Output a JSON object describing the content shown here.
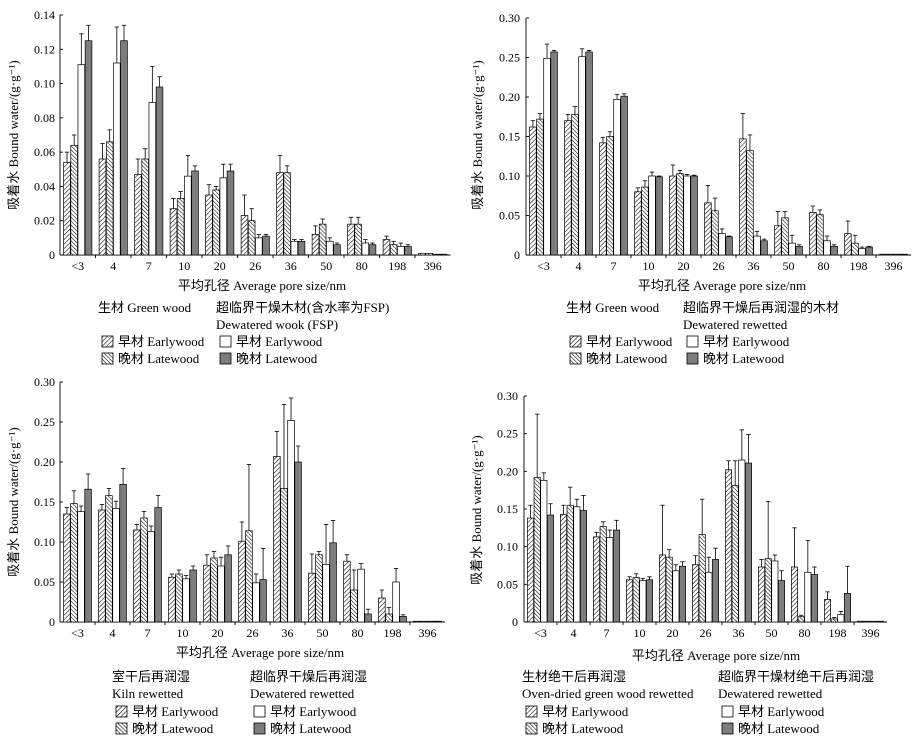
{
  "chart_data": [
    {
      "type": "bar",
      "categories": [
        "<3",
        "4",
        "7",
        "10",
        "20",
        "26",
        "36",
        "50",
        "80",
        "198",
        "396"
      ],
      "xlabel": "平均孔径 Average pore size/nm",
      "ylabel": "吸着水 Bound water/(g·g⁻¹)",
      "ylim": [
        0,
        0.14
      ],
      "ytick_labels": [
        "0",
        "0.02",
        "0.04",
        "0.06",
        "0.08",
        "0.10",
        "0.12",
        "0.14"
      ],
      "legend": {
        "groups": [
          {
            "lines": [
              "生材 Green wood"
            ]
          },
          {
            "lines": [
              "超临界干燥木材(含水率为FSP)",
              "Dewatered wook (FSP)"
            ]
          }
        ]
      },
      "series": [
        {
          "label": "早材 Earlywood",
          "group": 0,
          "fill": "hatch-forward",
          "values": [
            0.054,
            0.056,
            0.047,
            0.027,
            0.035,
            0.023,
            0.048,
            0.012,
            0.018,
            0.009,
            0.001
          ],
          "errors": [
            0.006,
            0.009,
            0.009,
            0.006,
            0.006,
            0.012,
            0.01,
            0.005,
            0.004,
            0.002,
            0
          ]
        },
        {
          "label": "晚材 Latewood",
          "group": 0,
          "fill": "hatch-back",
          "values": [
            0.064,
            0.066,
            0.056,
            0.033,
            0.038,
            0.02,
            0.048,
            0.018,
            0.018,
            0.006,
            0.001
          ],
          "errors": [
            0.006,
            0.007,
            0.006,
            0.004,
            0.002,
            0.007,
            0.004,
            0.003,
            0.004,
            0.002,
            0
          ]
        },
        {
          "label": "早材 Earlywood",
          "group": 1,
          "fill": "#ffffff",
          "values": [
            0.111,
            0.112,
            0.089,
            0.046,
            0.045,
            0.01,
            0.008,
            0.008,
            0.007,
            0.005,
            0.0
          ],
          "errors": [
            0.018,
            0.021,
            0.021,
            0.012,
            0.008,
            0.002,
            0.001,
            0.002,
            0.002,
            0.002,
            0
          ]
        },
        {
          "label": "晚材 Latewood",
          "group": 1,
          "fill": "#7d7d7d",
          "values": [
            0.125,
            0.125,
            0.098,
            0.049,
            0.049,
            0.011,
            0.008,
            0.006,
            0.006,
            0.005,
            0.0
          ],
          "errors": [
            0.009,
            0.009,
            0.006,
            0.003,
            0.004,
            0.001,
            0.001,
            0.001,
            0.001,
            0.001,
            0
          ]
        }
      ]
    },
    {
      "type": "bar",
      "categories": [
        "<3",
        "4",
        "7",
        "10",
        "20",
        "26",
        "36",
        "50",
        "80",
        "198",
        "396"
      ],
      "xlabel": "平均孔径 Average pore size/nm",
      "ylabel": "吸着水 Bound water/(g·g⁻¹)",
      "ylim": [
        0,
        0.3
      ],
      "ytick_labels": [
        "0",
        "0.05",
        "0.10",
        "0.15",
        "0.20",
        "0.25",
        "0.30"
      ],
      "legend": {
        "groups": [
          {
            "lines": [
              "生材 Green wood"
            ]
          },
          {
            "lines": [
              "超临界干燥后再润湿的木材",
              "Dewatered rewetted"
            ]
          }
        ]
      },
      "series": [
        {
          "label": "早材 Earlywood",
          "group": 0,
          "fill": "hatch-forward",
          "values": [
            0.162,
            0.17,
            0.142,
            0.08,
            0.1,
            0.066,
            0.147,
            0.037,
            0.054,
            0.027,
            0.001
          ],
          "errors": [
            0.008,
            0.008,
            0.007,
            0.005,
            0.014,
            0.022,
            0.032,
            0.018,
            0.008,
            0.016,
            0
          ]
        },
        {
          "label": "晚材 Latewood",
          "group": 0,
          "fill": "hatch-back",
          "values": [
            0.172,
            0.178,
            0.15,
            0.086,
            0.103,
            0.056,
            0.132,
            0.047,
            0.051,
            0.015,
            0.001
          ],
          "errors": [
            0.007,
            0.01,
            0.006,
            0.008,
            0.004,
            0.016,
            0.02,
            0.008,
            0.006,
            0.01,
            0
          ]
        },
        {
          "label": "早材 Earlywood",
          "group": 1,
          "fill": "#ffffff",
          "values": [
            0.249,
            0.251,
            0.197,
            0.1,
            0.1,
            0.027,
            0.024,
            0.015,
            0.018,
            0.008,
            0.001
          ],
          "errors": [
            0.018,
            0.01,
            0.006,
            0.005,
            0.002,
            0.006,
            0.006,
            0.01,
            0.006,
            0.002,
            0
          ]
        },
        {
          "label": "晚材 Latewood",
          "group": 1,
          "fill": "#7d7d7d",
          "values": [
            0.257,
            0.257,
            0.201,
            0.099,
            0.1,
            0.023,
            0.018,
            0.011,
            0.011,
            0.01,
            0.001
          ],
          "errors": [
            0.002,
            0.002,
            0.003,
            0.001,
            0.001,
            0.001,
            0.002,
            0.002,
            0.002,
            0.001,
            0
          ]
        }
      ]
    },
    {
      "type": "bar",
      "categories": [
        "<3",
        "4",
        "7",
        "10",
        "20",
        "26",
        "36",
        "50",
        "80",
        "198",
        "396"
      ],
      "xlabel": "平均孔径 Average pore size/nm",
      "ylabel": "吸着水 Bound water/(g·g⁻¹)",
      "ylim": [
        0,
        0.3
      ],
      "ytick_labels": [
        "0",
        "0.05",
        "0.10",
        "0.15",
        "0.20",
        "0.25",
        "0.30"
      ],
      "legend": {
        "groups": [
          {
            "lines": [
              "室干后再润湿",
              "Kiln rewetted"
            ]
          },
          {
            "lines": [
              "超临界干燥后再润湿",
              "Dewatered rewetted"
            ]
          }
        ]
      },
      "series": [
        {
          "label": "早材 Earlywood",
          "group": 0,
          "fill": "hatch-forward",
          "values": [
            0.135,
            0.14,
            0.115,
            0.056,
            0.071,
            0.101,
            0.207,
            0.061,
            0.076,
            0.03,
            0.001
          ],
          "errors": [
            0.008,
            0.007,
            0.007,
            0.004,
            0.013,
            0.024,
            0.031,
            0.024,
            0.008,
            0.01,
            0
          ]
        },
        {
          "label": "晚材 Latewood",
          "group": 0,
          "fill": "hatch-back",
          "values": [
            0.148,
            0.158,
            0.13,
            0.06,
            0.08,
            0.114,
            0.167,
            0.084,
            0.04,
            0.01,
            0.0
          ],
          "errors": [
            0.016,
            0.009,
            0.008,
            0.005,
            0.008,
            0.083,
            0.105,
            0.004,
            0.025,
            0.008,
            0
          ]
        },
        {
          "label": "早材 Earlywood",
          "group": 1,
          "fill": "#ffffff",
          "values": [
            0.138,
            0.142,
            0.113,
            0.054,
            0.07,
            0.049,
            0.252,
            0.072,
            0.066,
            0.05,
            0.001
          ],
          "errors": [
            0.007,
            0.009,
            0.007,
            0.004,
            0.011,
            0.011,
            0.028,
            0.05,
            0.007,
            0.017,
            0
          ]
        },
        {
          "label": "晚材 Latewood",
          "group": 1,
          "fill": "#7d7d7d",
          "values": [
            0.166,
            0.172,
            0.143,
            0.065,
            0.084,
            0.053,
            0.2,
            0.099,
            0.01,
            0.007,
            0.0
          ],
          "errors": [
            0.019,
            0.02,
            0.015,
            0.005,
            0.011,
            0.039,
            0.02,
            0.028,
            0.006,
            0.002,
            0
          ]
        }
      ]
    },
    {
      "type": "bar",
      "categories": [
        "<3",
        "4",
        "7",
        "10",
        "20",
        "26",
        "36",
        "50",
        "80",
        "198",
        "396"
      ],
      "xlabel": "平均孔径 Average pore size/nm",
      "ylabel": "吸着水 Bound water/(g·g⁻¹)",
      "ylim": [
        0,
        0.3
      ],
      "ytick_labels": [
        "0",
        "0.05",
        "0.10",
        "0.15",
        "0.20",
        "0.25",
        "0.30"
      ],
      "legend": {
        "groups": [
          {
            "lines": [
              "生材绝干后再润湿",
              "Oven-dried green wood rewetted"
            ]
          },
          {
            "lines": [
              "超临界干燥材绝干后再润湿",
              "Dewatered rewetted"
            ]
          }
        ]
      },
      "series": [
        {
          "label": "早材 Earlywood",
          "group": 0,
          "fill": "hatch-forward",
          "values": [
            0.138,
            0.143,
            0.113,
            0.056,
            0.089,
            0.076,
            0.202,
            0.073,
            0.073,
            0.03,
            0.001
          ],
          "errors": [
            0.017,
            0.012,
            0.006,
            0.004,
            0.066,
            0.012,
            0.012,
            0.01,
            0.052,
            0.01,
            0
          ]
        },
        {
          "label": "晚材 Latewood",
          "group": 0,
          "fill": "hatch-back",
          "values": [
            0.192,
            0.155,
            0.127,
            0.059,
            0.086,
            0.116,
            0.181,
            0.084,
            0.007,
            0.004,
            0.001
          ],
          "errors": [
            0.084,
            0.024,
            0.006,
            0.005,
            0.01,
            0.047,
            0.033,
            0.076,
            0.002,
            0.002,
            0
          ]
        },
        {
          "label": "早材 Earlywood",
          "group": 1,
          "fill": "#ffffff",
          "values": [
            0.188,
            0.153,
            0.112,
            0.055,
            0.068,
            0.066,
            0.215,
            0.081,
            0.066,
            0.01,
            0.001
          ],
          "errors": [
            0.01,
            0.01,
            0.01,
            0.003,
            0.008,
            0.02,
            0.04,
            0.008,
            0.042,
            0.004,
            0
          ]
        },
        {
          "label": "晚材 Latewood",
          "group": 1,
          "fill": "#7d7d7d",
          "values": [
            0.142,
            0.148,
            0.122,
            0.056,
            0.074,
            0.083,
            0.211,
            0.055,
            0.063,
            0.038,
            0.001
          ],
          "errors": [
            0.015,
            0.02,
            0.013,
            0.004,
            0.006,
            0.015,
            0.038,
            0.013,
            0.01,
            0.036,
            0
          ]
        }
      ]
    }
  ]
}
